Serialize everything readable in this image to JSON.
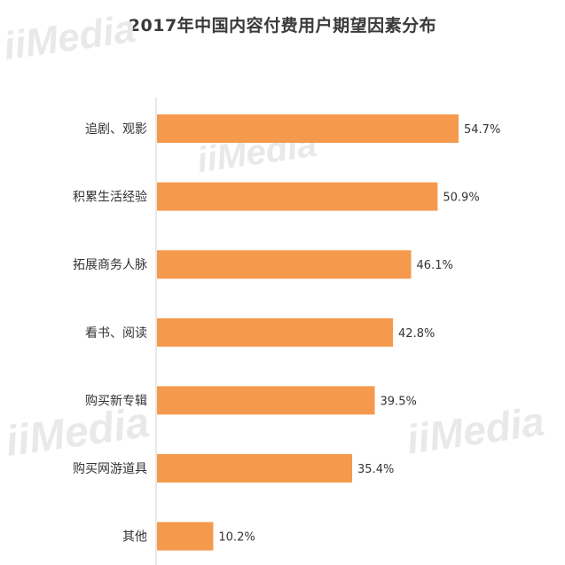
{
  "chart_data": {
    "type": "bar",
    "orientation": "horizontal",
    "title": "2017年中国内容付费用户期望因素分布",
    "categories": [
      "追剧、观影",
      "积累生活经验",
      "拓展商务人脉",
      "看书、阅读",
      "购买新专辑",
      "购买网游道具",
      "其他"
    ],
    "values": [
      54.7,
      50.9,
      46.1,
      42.8,
      39.5,
      35.4,
      10.2
    ],
    "value_labels": [
      "54.7%",
      "50.9%",
      "46.1%",
      "42.8%",
      "39.5%",
      "35.4%",
      "10.2%"
    ],
    "unit": "%",
    "xlim": [
      0,
      54.7
    ],
    "bar_color": "#F5994D",
    "axis_color": "#d0d0d0",
    "grid": false,
    "legend": "none"
  },
  "watermark": "iiMedia"
}
